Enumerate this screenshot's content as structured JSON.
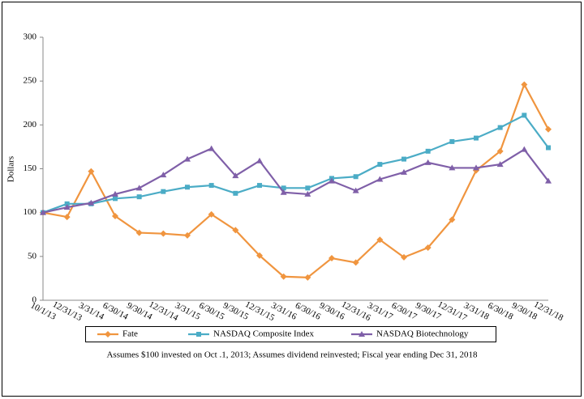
{
  "chart_data": {
    "type": "line",
    "y_label": "Dollars",
    "note": "Assumes $100 invested on Oct .1, 2013;  Assumes dividend reinvested; Fiscal year ending Dec 31, 2018",
    "categories": [
      "10/1/13",
      "12/31/13",
      "3/31/14",
      "6/30/14",
      "9/30/14",
      "12/31/14",
      "3/31/15",
      "6/30/15",
      "9/30/15",
      "12/31/15",
      "3/31/16",
      "6/30/16",
      "9/30/16",
      "12/31/16",
      "3/31/17",
      "6/30/17",
      "9/30/17",
      "12/31/17",
      "3/31/18",
      "6/30/18",
      "9/30/18",
      "12/31/18"
    ],
    "series": [
      {
        "name": "Fate",
        "color": "#f0953f",
        "marker": "diamond",
        "values": [
          100,
          95,
          147,
          96,
          77,
          76,
          74,
          98,
          80,
          51,
          27,
          26,
          48,
          43,
          69,
          49,
          60,
          92,
          148,
          170,
          246,
          195
        ]
      },
      {
        "name": "NASDAQ Composite Index",
        "color": "#4bacc6",
        "marker": "square",
        "values": [
          100,
          110,
          110,
          116,
          118,
          124,
          129,
          131,
          122,
          131,
          128,
          128,
          139,
          141,
          155,
          161,
          170,
          181,
          185,
          197,
          211,
          174
        ]
      },
      {
        "name": "NASDAQ Biotechnology",
        "color": "#7f5fa8",
        "marker": "triangle",
        "values": [
          100,
          106,
          111,
          121,
          128,
          143,
          161,
          173,
          142,
          159,
          123,
          121,
          136,
          125,
          138,
          146,
          157,
          151,
          151,
          155,
          172,
          136
        ]
      }
    ],
    "ylim": [
      0,
      300
    ],
    "yticks": [
      0,
      50,
      100,
      150,
      200,
      250,
      300
    ],
    "grid": false,
    "legend": "bottom"
  }
}
